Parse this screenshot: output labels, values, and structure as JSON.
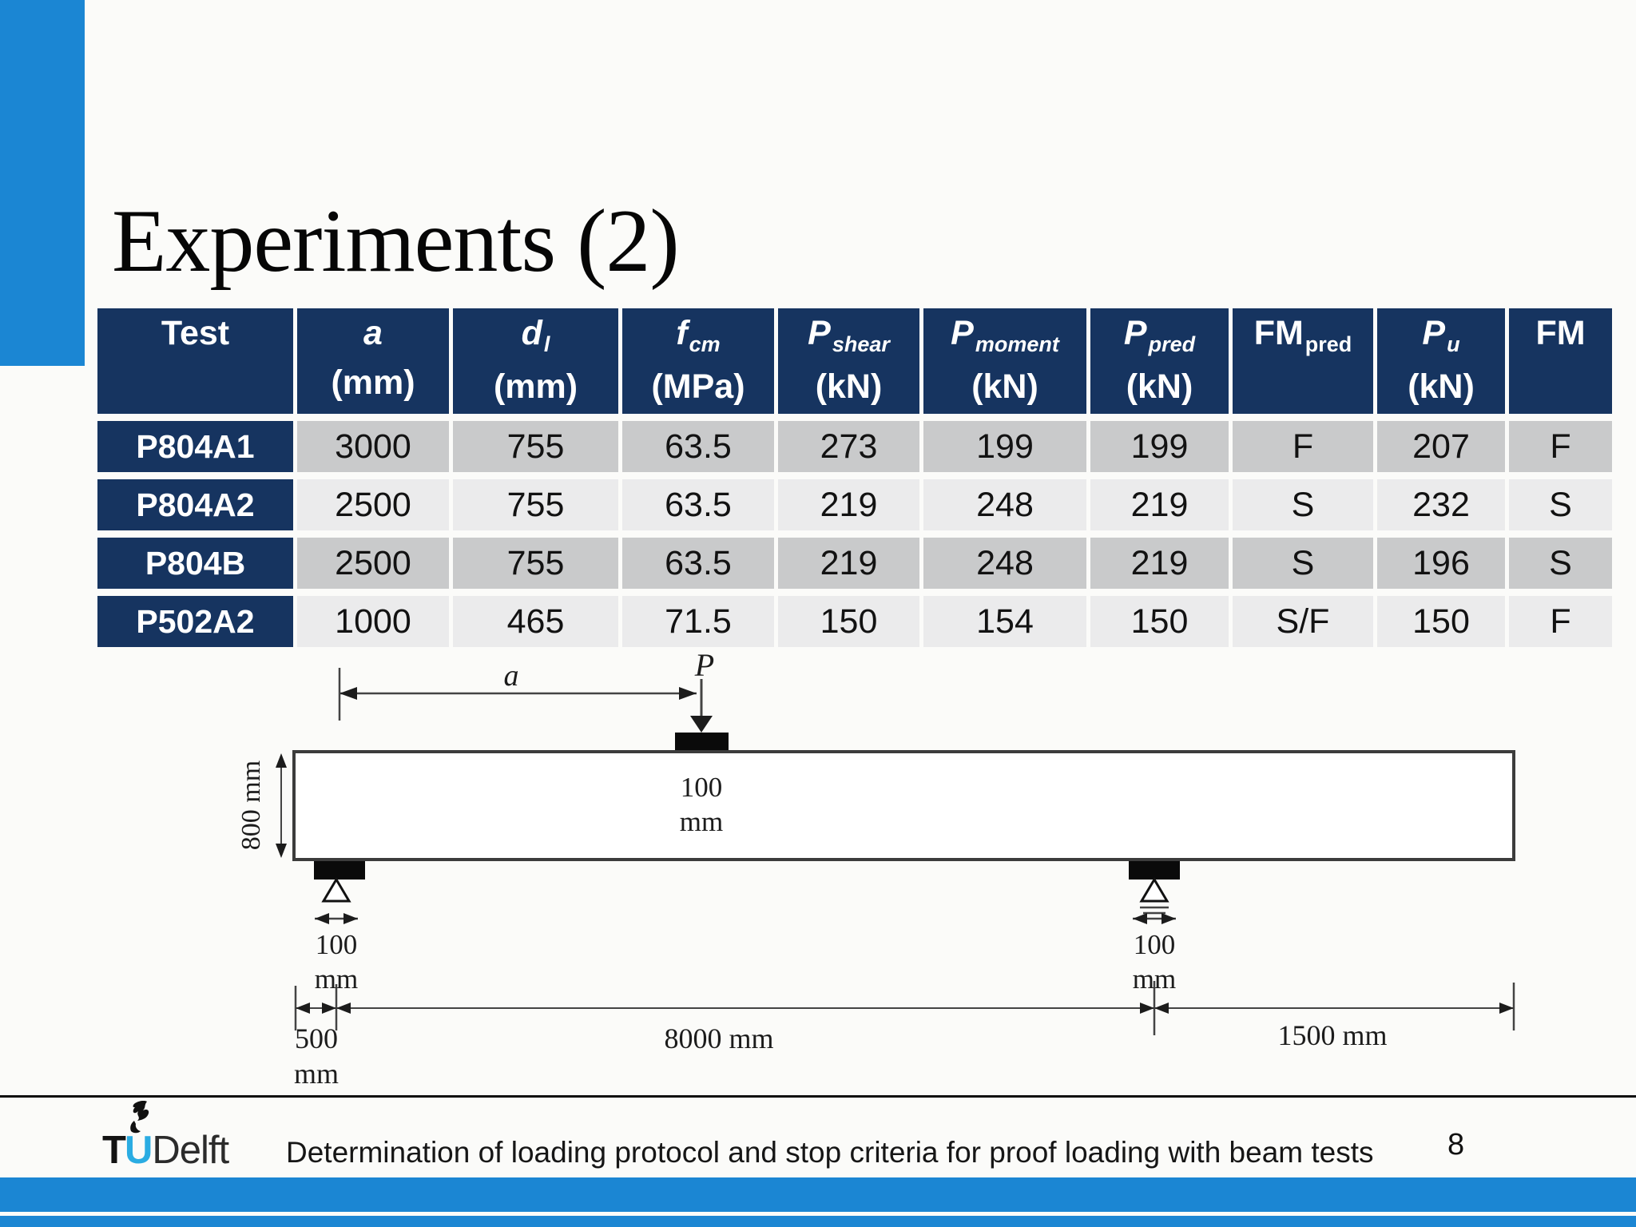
{
  "title": "Experiments (2)",
  "colors": {
    "accent_azure": "#1b86d3",
    "table_navy": "#163460",
    "row_dark_gray": "#c9cacb",
    "row_light_gray": "#ebebec",
    "logo_cyan": "#2aace2"
  },
  "table": {
    "columns": [
      {
        "sym": "Test",
        "sub": "",
        "unit": "",
        "italic": false
      },
      {
        "sym": "a",
        "sub": "",
        "unit": "(mm)",
        "italic": true
      },
      {
        "sym": "d",
        "sub": "l",
        "unit": "(mm)",
        "italic": true
      },
      {
        "sym": "f",
        "sub": "cm",
        "unit": "(MPa)",
        "italic": true
      },
      {
        "sym": "P",
        "sub": "shear",
        "unit": "(kN)",
        "italic": true
      },
      {
        "sym": "P",
        "sub": "moment",
        "unit": "(kN)",
        "italic": true
      },
      {
        "sym": "P",
        "sub": "pred",
        "unit": "(kN)",
        "italic": true
      },
      {
        "sym": "FM",
        "sub": "pred",
        "unit": "",
        "italic": false
      },
      {
        "sym": "P",
        "sub": "u",
        "unit": "(kN)",
        "italic": true
      },
      {
        "sym": "FM",
        "sub": "",
        "unit": "",
        "italic": false
      }
    ],
    "rows": [
      {
        "test": "P804A1",
        "values": [
          "3000",
          "755",
          "63.5",
          "273",
          "199",
          "199",
          "F",
          "207",
          "F"
        ]
      },
      {
        "test": "P804A2",
        "values": [
          "2500",
          "755",
          "63.5",
          "219",
          "248",
          "219",
          "S",
          "232",
          "S"
        ]
      },
      {
        "test": "P804B",
        "values": [
          "2500",
          "755",
          "63.5",
          "219",
          "248",
          "219",
          "S",
          "196",
          "S"
        ]
      },
      {
        "test": "P502A2",
        "values": [
          "1000",
          "465",
          "71.5",
          "150",
          "154",
          "150",
          "S/F",
          "150",
          "F"
        ]
      }
    ]
  },
  "diagram": {
    "load_label": "P",
    "shear_span_label": "a",
    "beam_depth_label": "800 mm",
    "load_plate_width_value": "100",
    "load_plate_width_unit": "mm",
    "left_support_width_value": "100",
    "left_support_width_unit": "mm",
    "right_support_width_value": "100",
    "right_support_width_unit": "mm",
    "left_overhang_value": "500",
    "left_overhang_unit": "mm",
    "span_label": "8000 mm",
    "right_overhang_label": "1500 mm"
  },
  "footer": {
    "logo_tu_t": "T",
    "logo_tu_u": "U",
    "logo_delft": "Delft",
    "caption": "Determination of loading protocol and stop criteria for proof loading with beam tests",
    "page_number": "8"
  }
}
